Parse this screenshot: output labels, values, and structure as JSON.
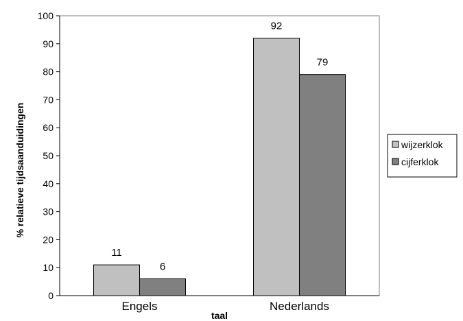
{
  "chart_data": {
    "type": "bar",
    "categories": [
      "Engels",
      "Nederlands"
    ],
    "series": [
      {
        "name": "wijzerklok",
        "values": [
          11,
          92
        ],
        "color": "#c0c0c0"
      },
      {
        "name": "cijferklok",
        "values": [
          6,
          79
        ],
        "color": "#808080"
      }
    ],
    "xlabel": "taal",
    "ylabel": "% relatieve tijdsaanduidingen",
    "ylim": [
      0,
      100
    ],
    "yticks": [
      0,
      10,
      20,
      30,
      40,
      50,
      60,
      70,
      80,
      90,
      100
    ],
    "grid": false,
    "legend": "right",
    "data_labels": true
  }
}
